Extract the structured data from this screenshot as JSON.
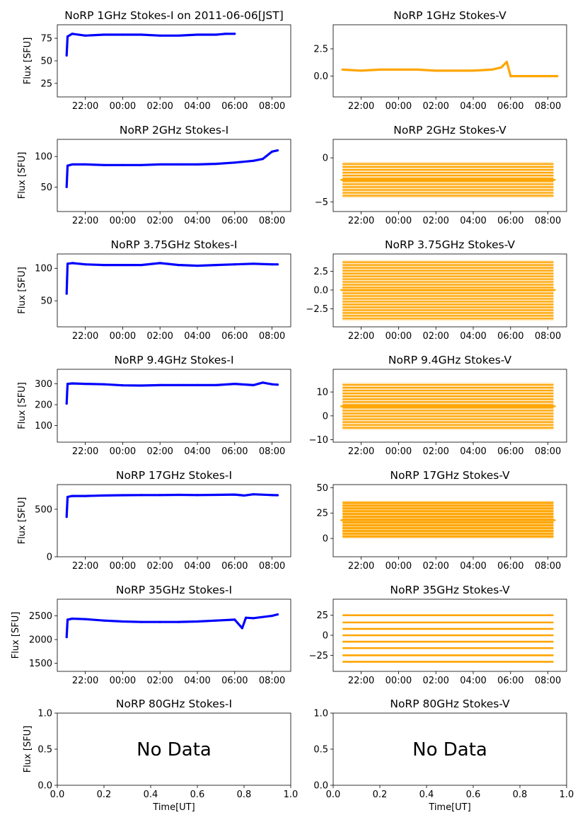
{
  "figure": {
    "time_ticks": [
      "22:00",
      "00:00",
      "02:00",
      "04:00",
      "06:00",
      "08:00"
    ],
    "ylabel": "Flux [SFU]",
    "xlabel": "Time[UT]",
    "no_data_text": "No Data",
    "colors": {
      "stokes_i": "#0000ff",
      "stokes_v": "#ffa500"
    }
  },
  "chart_data": [
    {
      "type": "scatter",
      "title": "NoRP 1GHz Stokes-I on 2011-06-06[JST]",
      "ylabel": "Flux [SFU]",
      "ylim": [
        10,
        90
      ],
      "yticks": [
        25,
        50,
        75
      ],
      "ytick_labels": [
        "25",
        "50",
        "75"
      ],
      "x_hour_range": [
        20.5,
        33.0
      ],
      "data_hour_range": [
        21.0,
        30.0
      ],
      "series": [
        {
          "name": "Stokes-I",
          "color": "#0000ff",
          "x": [
            21.0,
            21.05,
            21.3,
            22.0,
            23.0,
            24.0,
            25.0,
            26.0,
            27.0,
            28.0,
            29.0,
            29.5,
            30.0
          ],
          "y": [
            56,
            77,
            80,
            78,
            79,
            79,
            79,
            78,
            78,
            79,
            79,
            80,
            80
          ]
        }
      ]
    },
    {
      "type": "scatter",
      "title": "NoRP 1GHz Stokes-V",
      "ylim": [
        -1.9,
        4.7
      ],
      "yticks": [
        0,
        2.5
      ],
      "ytick_labels": [
        "0.0",
        "2.5"
      ],
      "x_hour_range": [
        20.5,
        33.0
      ],
      "data_hour_range": [
        21.0,
        32.5
      ],
      "series": [
        {
          "name": "Stokes-V",
          "color": "#ffa500",
          "x": [
            21.0,
            22.0,
            23.0,
            24.0,
            25.0,
            26.0,
            27.0,
            28.0,
            29.0,
            29.5,
            29.8,
            30.0,
            31.0,
            32.5
          ],
          "y": [
            0.6,
            0.5,
            0.6,
            0.6,
            0.6,
            0.5,
            0.5,
            0.5,
            0.6,
            0.8,
            1.3,
            0.0,
            0.0,
            0.0
          ]
        }
      ]
    },
    {
      "type": "scatter",
      "title": "NoRP 2GHz Stokes-I",
      "ylabel": "Flux [SFU]",
      "ylim": [
        10,
        128
      ],
      "yticks": [
        50,
        100
      ],
      "ytick_labels": [
        "50",
        "100"
      ],
      "x_hour_range": [
        20.5,
        33.0
      ],
      "data_hour_range": [
        21.0,
        32.3
      ],
      "series": [
        {
          "name": "Stokes-I",
          "color": "#0000ff",
          "x": [
            21.0,
            21.05,
            21.3,
            22.0,
            23.0,
            24.0,
            25.0,
            26.0,
            27.0,
            28.0,
            29.0,
            30.0,
            31.0,
            31.5,
            32.0,
            32.3
          ],
          "y": [
            50,
            85,
            87,
            87,
            86,
            86,
            86,
            87,
            87,
            87,
            88,
            90,
            93,
            96,
            108,
            110
          ]
        }
      ]
    },
    {
      "type": "scatter",
      "title": "NoRP 2GHz Stokes-V",
      "ylim": [
        -6.1,
        2.1
      ],
      "yticks": [
        -5,
        0
      ],
      "ytick_labels": [
        "−5",
        "0"
      ],
      "x_hour_range": [
        20.5,
        33.0
      ],
      "data_hour_range": [
        21.0,
        32.3
      ],
      "band": {
        "lo": -4.3,
        "hi": -0.7
      },
      "series": [
        {
          "name": "Stokes-V",
          "color": "#ffa500",
          "x": [
            21.0,
            32.3
          ],
          "y": [
            -2.5,
            -2.5
          ]
        }
      ]
    },
    {
      "type": "scatter",
      "title": "NoRP 3.75GHz Stokes-I",
      "ylabel": "Flux [SFU]",
      "ylim": [
        10,
        122
      ],
      "yticks": [
        50,
        100
      ],
      "ytick_labels": [
        "50",
        "100"
      ],
      "x_hour_range": [
        20.5,
        33.0
      ],
      "data_hour_range": [
        21.0,
        32.3
      ],
      "series": [
        {
          "name": "Stokes-I",
          "color": "#0000ff",
          "x": [
            21.0,
            21.05,
            21.3,
            22.0,
            23.0,
            24.0,
            25.0,
            26.0,
            27.0,
            28.0,
            29.0,
            30.0,
            31.0,
            32.0,
            32.3
          ],
          "y": [
            61,
            107,
            108,
            106,
            105,
            105,
            105,
            108,
            105,
            104,
            105,
            106,
            107,
            106,
            106
          ]
        }
      ]
    },
    {
      "type": "scatter",
      "title": "NoRP 3.75GHz Stokes-V",
      "ylim": [
        -4.9,
        4.8
      ],
      "yticks": [
        -2.5,
        0,
        2.5
      ],
      "ytick_labels": [
        "−2.5",
        "0.0",
        "2.5"
      ],
      "x_hour_range": [
        20.5,
        33.0
      ],
      "data_hour_range": [
        21.0,
        32.3
      ],
      "band": {
        "lo": -3.8,
        "hi": 3.7
      },
      "series": [
        {
          "name": "Stokes-V",
          "color": "#ffa500",
          "x": [
            21.0,
            32.3
          ],
          "y": [
            0,
            0
          ]
        }
      ]
    },
    {
      "type": "scatter",
      "title": "NoRP 9.4GHz Stokes-I",
      "ylabel": "Flux [SFU]",
      "ylim": [
        20,
        370
      ],
      "yticks": [
        100,
        200,
        300
      ],
      "ytick_labels": [
        "100",
        "200",
        "300"
      ],
      "x_hour_range": [
        20.5,
        33.0
      ],
      "data_hour_range": [
        21.0,
        32.3
      ],
      "series": [
        {
          "name": "Stokes-I",
          "color": "#0000ff",
          "x": [
            21.0,
            21.05,
            21.3,
            22.0,
            23.0,
            24.0,
            25.0,
            26.0,
            27.0,
            28.0,
            29.0,
            30.0,
            31.0,
            31.5,
            32.0,
            32.3
          ],
          "y": [
            205,
            300,
            302,
            300,
            298,
            293,
            292,
            294,
            294,
            294,
            294,
            300,
            294,
            306,
            298,
            296
          ]
        }
      ]
    },
    {
      "type": "scatter",
      "title": "NoRP 9.4GHz Stokes-V",
      "ylim": [
        -11,
        19.5
      ],
      "yticks": [
        -10,
        0,
        10
      ],
      "ytick_labels": [
        "−10",
        "0",
        "10"
      ],
      "x_hour_range": [
        20.5,
        33.0
      ],
      "data_hour_range": [
        21.0,
        32.3
      ],
      "band": {
        "lo": -5,
        "hi": 13
      },
      "series": [
        {
          "name": "Stokes-V",
          "color": "#ffa500",
          "x": [
            21.0,
            32.3
          ],
          "y": [
            4,
            4
          ]
        }
      ]
    },
    {
      "type": "scatter",
      "title": "NoRP 17GHz Stokes-I",
      "ylabel": "Flux [SFU]",
      "ylim": [
        0,
        760
      ],
      "yticks": [
        0,
        500
      ],
      "ytick_labels": [
        "0",
        "500"
      ],
      "x_hour_range": [
        20.5,
        33.0
      ],
      "data_hour_range": [
        21.0,
        32.3
      ],
      "series": [
        {
          "name": "Stokes-I",
          "color": "#0000ff",
          "x": [
            21.0,
            21.05,
            21.3,
            22.0,
            23.0,
            24.0,
            25.0,
            26.0,
            27.0,
            28.0,
            29.0,
            30.0,
            30.5,
            31.0,
            32.0,
            32.3
          ],
          "y": [
            420,
            630,
            640,
            640,
            645,
            648,
            650,
            650,
            652,
            650,
            652,
            655,
            645,
            658,
            650,
            648
          ]
        }
      ]
    },
    {
      "type": "scatter",
      "title": "NoRP 17GHz Stokes-V",
      "ylim": [
        -18,
        53
      ],
      "yticks": [
        0,
        25,
        50
      ],
      "ytick_labels": [
        "0",
        "25",
        "50"
      ],
      "x_hour_range": [
        20.5,
        33.0
      ],
      "data_hour_range": [
        21.0,
        32.3
      ],
      "band": {
        "lo": 2,
        "hi": 35
      },
      "series": [
        {
          "name": "Stokes-V",
          "color": "#ffa500",
          "x": [
            21.0,
            32.3
          ],
          "y": [
            18,
            18
          ]
        }
      ]
    },
    {
      "type": "scatter",
      "title": "NoRP 35GHz Stokes-I",
      "ylabel": "Flux [SFU]",
      "ylim": [
        1330,
        2850
      ],
      "yticks": [
        1500,
        2000,
        2500
      ],
      "ytick_labels": [
        "1500",
        "2000",
        "2500"
      ],
      "x_hour_range": [
        20.5,
        33.0
      ],
      "data_hour_range": [
        21.0,
        32.3
      ],
      "series": [
        {
          "name": "Stokes-I",
          "color": "#0000ff",
          "x": [
            21.0,
            21.05,
            21.3,
            22.0,
            23.0,
            24.0,
            25.0,
            26.0,
            27.0,
            28.0,
            29.0,
            30.0,
            30.4,
            30.6,
            31.0,
            32.0,
            32.3
          ],
          "y": [
            2050,
            2420,
            2440,
            2430,
            2400,
            2380,
            2370,
            2370,
            2370,
            2380,
            2400,
            2420,
            2240,
            2460,
            2450,
            2500,
            2530
          ]
        }
      ]
    },
    {
      "type": "scatter",
      "title": "NoRP 35GHz Stokes-V",
      "ylim": [
        -45,
        45
      ],
      "yticks": [
        -25,
        0,
        25
      ],
      "ytick_labels": [
        "−25",
        "0",
        "25"
      ],
      "x_hour_range": [
        20.5,
        33.0
      ],
      "data_hour_range": [
        21.0,
        32.3
      ],
      "levels": [
        -33,
        -25,
        -16,
        -8,
        0,
        8,
        16,
        25
      ],
      "series": [
        {
          "name": "Stokes-V",
          "color": "#ffa500",
          "x": [
            21.0,
            32.3
          ],
          "y": [
            0,
            0
          ]
        }
      ]
    },
    {
      "type": "scatter",
      "title": "NoRP 80GHz Stokes-I",
      "ylabel": "Flux [SFU]",
      "xlabel": "Time[UT]",
      "no_data": true,
      "xlim": [
        0,
        1
      ],
      "ylim": [
        0,
        1
      ],
      "xticks": [
        "0.0",
        "0.2",
        "0.4",
        "0.6",
        "0.8",
        "1.0"
      ],
      "yticks": [
        "0.0",
        "0.5",
        "1.0"
      ],
      "series": []
    },
    {
      "type": "scatter",
      "title": "NoRP 80GHz Stokes-V",
      "xlabel": "Time[UT]",
      "no_data": true,
      "xlim": [
        0,
        1
      ],
      "ylim": [
        0,
        1
      ],
      "xticks": [
        "0.0",
        "0.2",
        "0.4",
        "0.6",
        "0.8",
        "1.0"
      ],
      "yticks": [
        "0.0",
        "0.5",
        "1.0"
      ],
      "series": []
    }
  ]
}
